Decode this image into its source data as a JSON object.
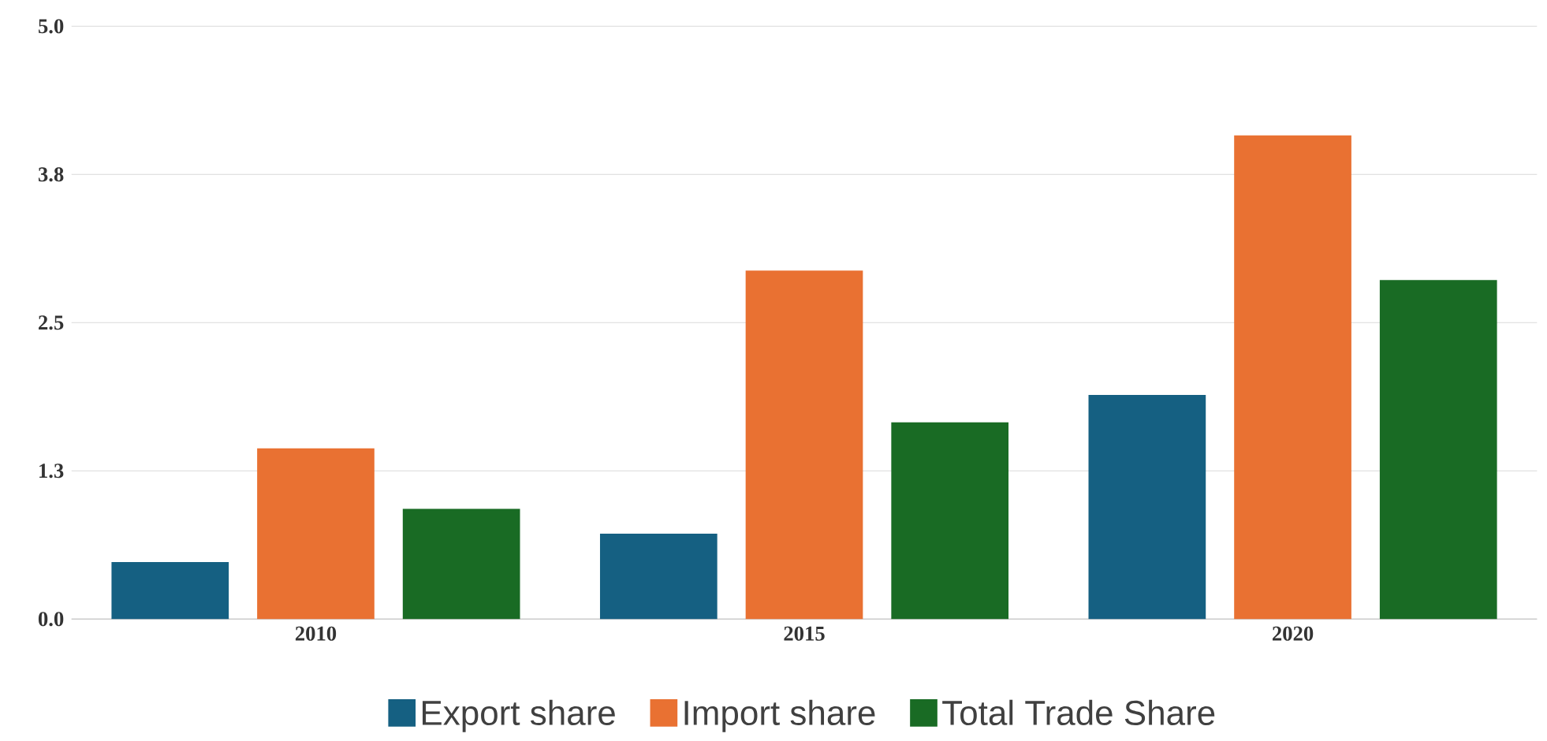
{
  "chart_data": {
    "type": "bar",
    "categories": [
      "2010",
      "2015",
      "2020"
    ],
    "series": [
      {
        "name": "Export share",
        "color": "#156082",
        "values": [
          0.48,
          0.72,
          1.89
        ]
      },
      {
        "name": "Import share",
        "color": "#e97132",
        "values": [
          1.44,
          2.94,
          4.08
        ]
      },
      {
        "name": "Total Trade Share",
        "color": "#196b24",
        "values": [
          0.93,
          1.66,
          2.86
        ]
      }
    ],
    "ylim": [
      0,
      5
    ],
    "yticks": [
      {
        "value": 0,
        "label": "0.0"
      },
      {
        "value": 1.25,
        "label": "1.3"
      },
      {
        "value": 2.5,
        "label": "2.5"
      },
      {
        "value": 3.75,
        "label": "3.8"
      },
      {
        "value": 5,
        "label": "5.0"
      }
    ],
    "grid": "y",
    "legend": "bottom"
  }
}
